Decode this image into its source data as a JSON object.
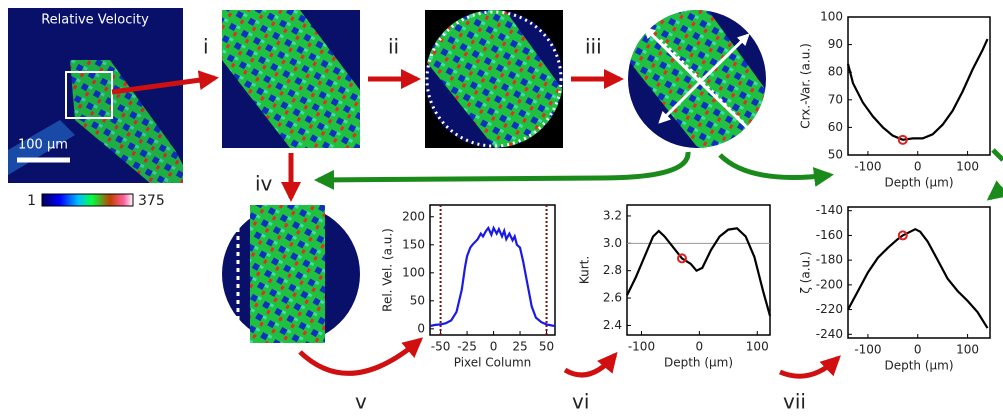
{
  "figure": {
    "image_title": "Relative Velocity",
    "scale_bar": "100 µm",
    "colorbar": {
      "min": 1,
      "max": 375
    },
    "steps": [
      "i",
      "ii",
      "iii",
      "iv",
      "v",
      "vi",
      "vii"
    ]
  },
  "chart_data": [
    {
      "type": "line",
      "ylabel": "Crx.-Var. (a.u.)",
      "xlabel": "Depth (µm)",
      "xlim": [
        -140,
        145
      ],
      "ylim": [
        50,
        100
      ],
      "xticks": [
        -100,
        0,
        100
      ],
      "yticks": [
        50,
        60,
        70,
        80,
        90,
        100
      ],
      "series": [
        {
          "color": "#000000",
          "x": [
            -140,
            -130,
            -110,
            -90,
            -70,
            -50,
            -30,
            -10,
            10,
            30,
            50,
            70,
            90,
            110,
            130,
            140
          ],
          "values": [
            83,
            76,
            69,
            64,
            60,
            57,
            55.5,
            56,
            56,
            57.5,
            61,
            66,
            73,
            81,
            88,
            92
          ]
        }
      ],
      "marker": {
        "x": -30,
        "y": 55.5,
        "color": "#e02020"
      }
    },
    {
      "type": "line",
      "ylabel": "Rel. Vel. (a.u.)",
      "xlabel": "Pixel Column",
      "xlim": [
        -60,
        58
      ],
      "ylim": [
        -11,
        221
      ],
      "xticks": [
        -50,
        -25,
        0,
        25,
        50
      ],
      "yticks": [
        0,
        50,
        100,
        150,
        200
      ],
      "vlines": [
        -50,
        50
      ],
      "vline_color": "#7a1010",
      "series": [
        {
          "color": "#1a1ae6",
          "x": [
            -60,
            -55,
            -50,
            -45,
            -40,
            -35,
            -30,
            -27,
            -25,
            -22,
            -20,
            -15,
            -12,
            -10,
            -7,
            -5,
            -2,
            0,
            3,
            5,
            8,
            10,
            12,
            15,
            18,
            20,
            22,
            25,
            28,
            30,
            33,
            36,
            40,
            45,
            50,
            55,
            58
          ],
          "values": [
            5,
            7,
            8,
            10,
            15,
            30,
            70,
            110,
            130,
            145,
            150,
            160,
            170,
            165,
            175,
            180,
            168,
            180,
            170,
            178,
            165,
            175,
            160,
            170,
            158,
            165,
            150,
            145,
            120,
            100,
            70,
            40,
            20,
            12,
            8,
            6,
            5
          ]
        }
      ]
    },
    {
      "type": "line",
      "ylabel": "Kurt.",
      "xlabel": "Depth (µm)",
      "xlim": [
        -125,
        122
      ],
      "ylim": [
        2.33,
        3.28
      ],
      "xticks": [
        -100,
        0,
        100
      ],
      "yticks": [
        2.4,
        2.6,
        2.8,
        {
          "value": 3,
          "label": "3.0"
        },
        3.2
      ],
      "hline": 3,
      "hline_color": "#999999",
      "series": [
        {
          "color": "#000000",
          "x": [
            -125,
            -110,
            -95,
            -80,
            -70,
            -60,
            -45,
            -30,
            -15,
            -5,
            5,
            20,
            35,
            50,
            65,
            80,
            95,
            110,
            122
          ],
          "values": [
            2.62,
            2.75,
            2.9,
            3.05,
            3.09,
            3.05,
            2.97,
            2.89,
            2.85,
            2.8,
            2.82,
            2.95,
            3.05,
            3.1,
            3.11,
            3.05,
            2.9,
            2.65,
            2.47
          ]
        }
      ],
      "marker": {
        "x": -30,
        "y": 2.89,
        "color": "#e02020"
      }
    },
    {
      "type": "line",
      "ylabel": "ζ (a.u.)",
      "xlabel": "Depth (µm)",
      "xlim": [
        -140,
        145
      ],
      "ylim": [
        -243,
        -137
      ],
      "xticks": [
        -100,
        0,
        100
      ],
      "yticks": [
        -240,
        -220,
        -200,
        -180,
        -160,
        -140
      ],
      "series": [
        {
          "color": "#000000",
          "x": [
            -140,
            -120,
            -100,
            -80,
            -60,
            -40,
            -30,
            -15,
            -5,
            5,
            20,
            40,
            60,
            80,
            100,
            120,
            140
          ],
          "values": [
            -220,
            -205,
            -190,
            -178,
            -170,
            -163,
            -160,
            -157,
            -155,
            -157,
            -165,
            -180,
            -195,
            -205,
            -213,
            -222,
            -235
          ]
        }
      ],
      "marker": {
        "x": -30,
        "y": -160,
        "color": "#e02020"
      }
    }
  ]
}
